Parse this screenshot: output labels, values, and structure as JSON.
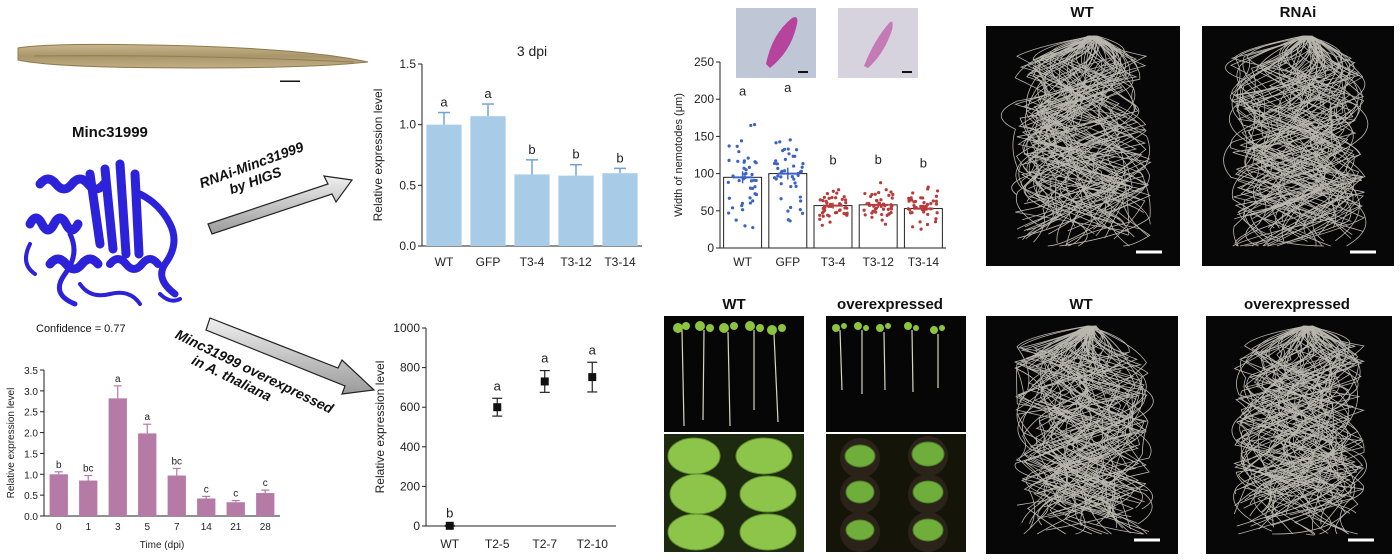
{
  "protein": {
    "name": "Minc31999",
    "confidence_label": "Confidence = 0.77"
  },
  "arrows": {
    "rnai": {
      "line1": "RNAi-Minc31999",
      "line2": "by HIGS"
    },
    "overexp": {
      "line1": "Minc31999 overexpressed",
      "line2": "in A. thaliana"
    }
  },
  "photo_labels": {
    "root_top_left": "WT",
    "root_top_right": "RNAi",
    "root_bottom_left": "WT",
    "root_bottom_right": "overexpressed",
    "plant_left": "WT",
    "plant_right": "overexpressed"
  },
  "colors": {
    "time_bar": "#b57aa6",
    "rnai_bar": "#a8cce8",
    "rnai_err": "#6fa3d6",
    "wt_dots": "#3b62c4",
    "t3_dots": "#b83a3a",
    "leaf": "#7fb84a",
    "root": "#d9d6cc",
    "protein": "#2b22d9"
  },
  "chart_data": [
    {
      "id": "time_course",
      "type": "bar",
      "title": "",
      "xlabel": "Time (dpi)",
      "ylabel": "Relative expression level",
      "categories": [
        "0",
        "1",
        "3",
        "5",
        "7",
        "14",
        "21",
        "28"
      ],
      "values": [
        1.0,
        0.85,
        2.82,
        1.98,
        0.97,
        0.42,
        0.33,
        0.55
      ],
      "errors": [
        0.06,
        0.12,
        0.3,
        0.22,
        0.17,
        0.05,
        0.04,
        0.07
      ],
      "letters": [
        "b",
        "bc",
        "a",
        "a",
        "bc",
        "c",
        "c",
        "c"
      ],
      "ylim": [
        0,
        3.5
      ],
      "yticks": [
        "0.0",
        "0.5",
        "1.0",
        "1.5",
        "2.0",
        "2.5",
        "3.0",
        "3.5"
      ]
    },
    {
      "id": "rnai_expression",
      "type": "bar",
      "title": "3 dpi",
      "xlabel": "",
      "ylabel": "Relative expression level",
      "categories": [
        "WT",
        "GFP",
        "T3-4",
        "T3-12",
        "T3-14"
      ],
      "values": [
        1.0,
        1.07,
        0.59,
        0.58,
        0.6
      ],
      "errors": [
        0.1,
        0.1,
        0.12,
        0.09,
        0.04
      ],
      "letters": [
        "a",
        "a",
        "b",
        "b",
        "b"
      ],
      "ylim": [
        0,
        1.5
      ],
      "yticks": [
        "0.0",
        "0.5",
        "1.0",
        "1.5"
      ]
    },
    {
      "id": "nematode_width",
      "type": "scatter",
      "title": "",
      "xlabel": "",
      "ylabel": "Width of nemotodes (μm)",
      "categories": [
        "WT",
        "GFP",
        "T3-4",
        "T3-12",
        "T3-14"
      ],
      "values": [
        95,
        100,
        57,
        58,
        53
      ],
      "errors": [
        8,
        8,
        4,
        4,
        4
      ],
      "letters": [
        "a",
        "a",
        "b",
        "b",
        "b"
      ],
      "ylim": [
        0,
        250
      ],
      "yticks": [
        "0",
        "50",
        "100",
        "150",
        "200",
        "250"
      ]
    },
    {
      "id": "overexp_expression",
      "type": "scatter",
      "title": "",
      "xlabel": "",
      "ylabel": "Relative expression level",
      "categories": [
        "WT",
        "T2-5",
        "T2-7",
        "T2-10"
      ],
      "values": [
        1,
        600,
        730,
        752
      ],
      "errors": [
        2,
        45,
        55,
        75
      ],
      "letters": [
        "b",
        "a",
        "a",
        "a"
      ],
      "ylim": [
        0,
        1000
      ],
      "yticks": [
        "0",
        "200",
        "400",
        "600",
        "800",
        "1000"
      ]
    }
  ]
}
